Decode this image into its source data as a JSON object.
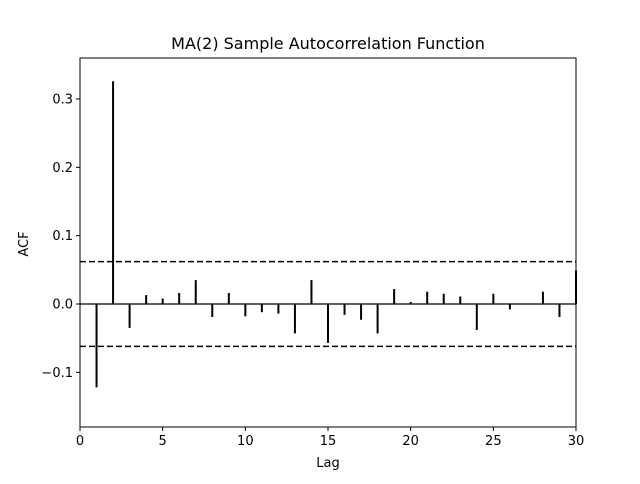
{
  "chart_data": {
    "type": "bar",
    "title": "MA(2) Sample Autocorrelation Function",
    "xlabel": "Lag",
    "ylabel": "ACF",
    "xlim": [
      0,
      30
    ],
    "ylim": [
      -0.18,
      0.36
    ],
    "x_ticks": [
      0,
      5,
      10,
      15,
      20,
      25,
      30
    ],
    "x_tick_labels": [
      "0",
      "5",
      "10",
      "15",
      "20",
      "25",
      "30"
    ],
    "y_ticks": [
      -0.1,
      0.0,
      0.1,
      0.2,
      0.3
    ],
    "y_tick_labels": [
      "−0.1",
      "0.0",
      "0.1",
      "0.2",
      "0.3"
    ],
    "grid": false,
    "lags": [
      1,
      2,
      3,
      4,
      5,
      6,
      7,
      8,
      9,
      10,
      11,
      12,
      13,
      14,
      15,
      16,
      17,
      18,
      19,
      20,
      21,
      22,
      23,
      24,
      25,
      26,
      27,
      28,
      29,
      30
    ],
    "values": [
      -0.122,
      0.326,
      -0.035,
      0.013,
      0.008,
      0.016,
      0.035,
      -0.019,
      0.016,
      -0.018,
      -0.012,
      -0.014,
      -0.043,
      0.035,
      -0.057,
      -0.016,
      -0.023,
      -0.043,
      0.022,
      0.003,
      0.018,
      0.015,
      0.011,
      -0.038,
      0.015,
      -0.008,
      0.0,
      0.018,
      -0.019,
      0.049
    ],
    "confidence_bounds": [
      0.062,
      -0.062
    ],
    "colors": {
      "stems": "#000000",
      "zero_line": "#000000",
      "bounds": "#000000",
      "axes": "#000000"
    }
  }
}
